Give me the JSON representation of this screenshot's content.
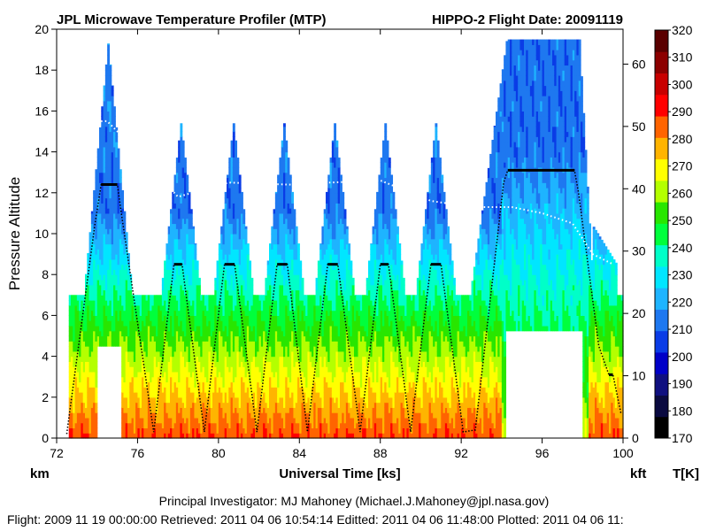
{
  "header": {
    "title": "JPL Microwave Temperature Profiler (MTP)",
    "campaign": "HIPPO-2  Flight Date: 20091119"
  },
  "footer": {
    "investigator": "Principal Investigator: MJ Mahoney (Michael.J.Mahoney@jpl.nasa.gov)",
    "timestamps": "Flight: 2009 11 19 00:00:00   Retrieved: 2011 04 06 10:54:14   Editted: 2011 04 06 11:48:00   Plotted: 2011 04 06 11:"
  },
  "chart_data": {
    "type": "heatmap",
    "title": "JPL Microwave Temperature Profiler (MTP)",
    "xlabel": "Universal Time [ks]",
    "ylabel": "Pressure Altitude",
    "y_unit_left": "km",
    "y_unit_right": "kft",
    "colorbar_unit": "T[K]",
    "xlim": [
      72,
      100
    ],
    "ylim": [
      0,
      20
    ],
    "y2lim_kft": [
      0,
      65.6
    ],
    "x_ticks": [
      72,
      76,
      80,
      84,
      88,
      92,
      96,
      100
    ],
    "y_ticks": [
      0,
      2,
      4,
      6,
      8,
      10,
      12,
      14,
      16,
      18,
      20
    ],
    "y2_ticks": [
      0,
      10,
      20,
      30,
      40,
      50,
      60
    ],
    "colorbar": {
      "min": 170,
      "max": 320,
      "step": 10,
      "ticks": [
        170,
        180,
        190,
        200,
        210,
        220,
        230,
        240,
        250,
        260,
        270,
        280,
        290,
        300,
        310,
        320
      ],
      "colors": [
        "#000000",
        "#0a0a40",
        "#101080",
        "#0000c8",
        "#0a3ce6",
        "#1e78f0",
        "#1eb4ff",
        "#00e6ff",
        "#00ffc8",
        "#00ff3c",
        "#28e600",
        "#b4ff00",
        "#ffff00",
        "#ffb400",
        "#ff6400",
        "#ff0000",
        "#c80000",
        "#8c0000",
        "#5a0000"
      ]
    },
    "flight_altitude_km": {
      "x": [
        72.5,
        73.9,
        74.2,
        75.0,
        75.2,
        76.8,
        77.8,
        78.2,
        79.3,
        80.3,
        80.8,
        81.9,
        82.9,
        83.4,
        84.4,
        85.4,
        85.9,
        87.0,
        88.0,
        88.4,
        89.5,
        90.5,
        91.0,
        92.1,
        92.7,
        94.1,
        94.3,
        97.6,
        97.8,
        98.8,
        99.3,
        99.5,
        99.9
      ],
      "y": [
        0.2,
        10.5,
        12.4,
        12.4,
        11.0,
        0.3,
        8.5,
        8.5,
        0.3,
        8.5,
        8.5,
        0.3,
        8.5,
        8.5,
        0.3,
        8.5,
        8.5,
        0.3,
        8.5,
        8.5,
        0.3,
        8.5,
        8.5,
        0.3,
        0.4,
        12.5,
        13.1,
        13.1,
        12.0,
        4.5,
        3.1,
        3.1,
        1.2
      ]
    },
    "tropopause_km": {
      "x": [
        74.0,
        74.5,
        75.0,
        78.0,
        80.5,
        83.5,
        85.5,
        88.0,
        90.5,
        92.5,
        94.5,
        96.0,
        97.5,
        98.5,
        99.5
      ],
      "y": [
        15.5,
        15.5,
        15.0,
        11.8,
        12.5,
        12.4,
        12.5,
        12.6,
        11.6,
        11.3,
        11.3,
        11.0,
        10.5,
        9.0,
        8.5
      ]
    },
    "curtain": {
      "spikes": [
        {
          "x": 74.5,
          "top_km": 19.3,
          "half_width": 1.2
        },
        {
          "x": 78.1,
          "top_km": 15.4,
          "half_width": 1.0
        },
        {
          "x": 80.7,
          "top_km": 15.4,
          "half_width": 1.0
        },
        {
          "x": 83.2,
          "top_km": 15.4,
          "half_width": 1.0
        },
        {
          "x": 85.7,
          "top_km": 15.4,
          "half_width": 1.0
        },
        {
          "x": 88.2,
          "top_km": 15.4,
          "half_width": 1.0
        },
        {
          "x": 90.7,
          "top_km": 15.4,
          "half_width": 1.0
        }
      ],
      "plateau": {
        "x0": 94.2,
        "x1": 97.8,
        "top_km": 19.5
      },
      "valley_top_km": 7.0,
      "gaps": [
        {
          "x0": 73.9,
          "x1": 75.1,
          "top_km": 4.5
        },
        {
          "x0": 94.1,
          "x1": 97.9,
          "top_km": 5.1
        }
      ]
    }
  }
}
